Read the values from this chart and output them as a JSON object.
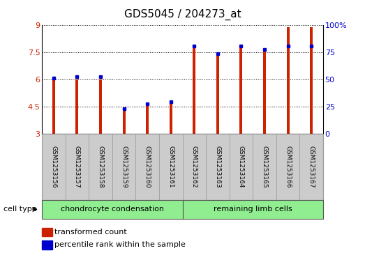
{
  "title": "GDS5045 / 204273_at",
  "samples": [
    "GSM1253156",
    "GSM1253157",
    "GSM1253158",
    "GSM1253159",
    "GSM1253160",
    "GSM1253161",
    "GSM1253162",
    "GSM1253163",
    "GSM1253164",
    "GSM1253165",
    "GSM1253166",
    "GSM1253167"
  ],
  "red_values": [
    6.0,
    6.0,
    6.0,
    4.35,
    4.6,
    4.7,
    7.75,
    7.4,
    7.8,
    7.6,
    8.9,
    8.9
  ],
  "blue_values": [
    6.1,
    6.15,
    6.15,
    4.4,
    4.65,
    4.77,
    7.85,
    7.45,
    7.85,
    7.65,
    7.85,
    7.85
  ],
  "ylim_left": [
    3,
    9
  ],
  "ylim_right": [
    0,
    100
  ],
  "yticks_left": [
    3,
    4.5,
    6,
    7.5,
    9
  ],
  "yticks_right": [
    0,
    25,
    50,
    75,
    100
  ],
  "ytick_labels_left": [
    "3",
    "4.5",
    "6",
    "7.5",
    "9"
  ],
  "ytick_labels_right": [
    "0",
    "25",
    "50",
    "75",
    "100%"
  ],
  "group1_label": "chondrocyte condensation",
  "group2_label": "remaining limb cells",
  "group_color": "#90EE90",
  "cell_type_label": "cell type",
  "legend_red_label": "transformed count",
  "legend_blue_label": "percentile rank within the sample",
  "bar_width": 0.12,
  "red_color": "#CC2200",
  "blue_color": "#0000CC",
  "title_fontsize": 11,
  "tick_fontsize": 8,
  "sample_fontsize": 6.5,
  "group_fontsize": 8,
  "legend_fontsize": 8,
  "sample_box_color": "#CCCCCC",
  "ybase": 3
}
